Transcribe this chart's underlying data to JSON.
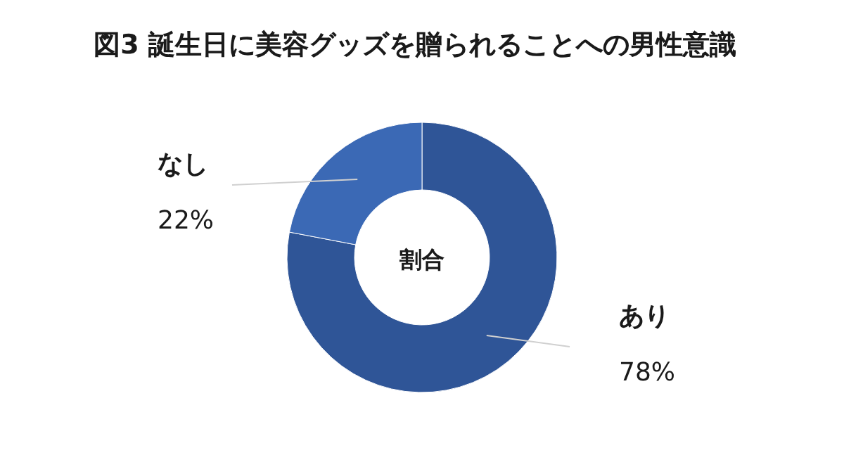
{
  "chart_data": {
    "type": "donut",
    "title": "図3 誕生日に美容グッズを贈られることへの男性意識",
    "categories": [
      "あり",
      "なし"
    ],
    "values": [
      78,
      22
    ],
    "colors": [
      "#2f5597",
      "#3b69b5"
    ],
    "value_labels": [
      "78%",
      "22%"
    ],
    "annotations": [
      "割合"
    ]
  }
}
